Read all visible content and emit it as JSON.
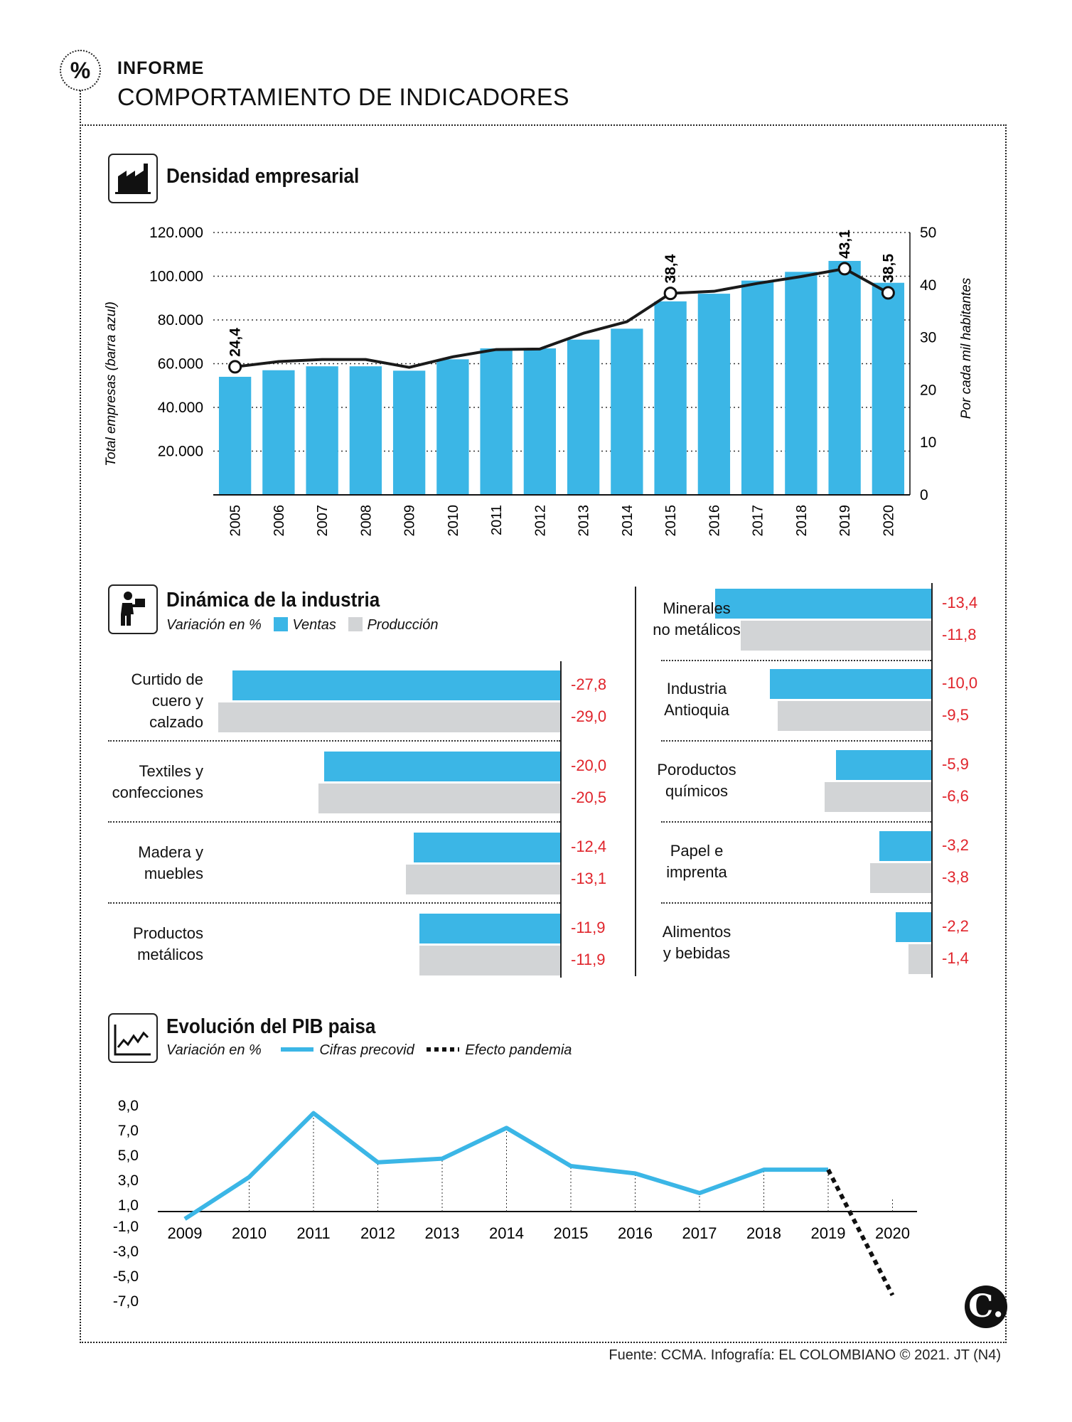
{
  "header": {
    "kicker": "INFORME",
    "title": "COMPORTAMIENTO DE INDICADORES",
    "badge": "%"
  },
  "colors": {
    "blue": "#3bb6e6",
    "gray": "#d2d4d6",
    "line": "#1a1a1a",
    "red": "#e0242b"
  },
  "density": {
    "title": "Densidad empresarial",
    "icon": "factory-icon",
    "chart_data": {
      "type": "bar",
      "title": "Densidad empresarial",
      "ylabel": "Total empresas (barra azul)",
      "y2label": "Por cada mil habitantes",
      "categories": [
        "2005",
        "2006",
        "2007",
        "2008",
        "2009",
        "2010",
        "2011",
        "2012",
        "2013",
        "2014",
        "2015",
        "2016",
        "2017",
        "2018",
        "2019",
        "2020"
      ],
      "series": [
        {
          "values": [
            54000,
            57000,
            58800,
            58800,
            56800,
            62000,
            67000,
            67000,
            71000,
            76000,
            88500,
            92000,
            98000,
            102000,
            107000,
            97000
          ]
        },
        {
          "values": [
            24.4,
            25.4,
            25.8,
            25.8,
            24.3,
            26.3,
            27.7,
            27.8,
            30.8,
            33.0,
            38.4,
            38.8,
            40.3,
            41.6,
            43.1,
            38.5
          ]
        }
      ],
      "ylim": [
        0,
        120000
      ],
      "y2lim": [
        0,
        50
      ],
      "yticks": [
        "20.000",
        "40.000",
        "60.000",
        "80.000",
        "100.000",
        "120.000"
      ],
      "y2ticks": [
        "0",
        "10",
        "20",
        "30",
        "40",
        "50"
      ],
      "labeled": [
        {
          "year": "2005",
          "label": "24,4"
        },
        {
          "year": "2015",
          "label": "38,4"
        },
        {
          "year": "2019",
          "label": "43,1"
        },
        {
          "year": "2020",
          "label": "38,5"
        }
      ]
    }
  },
  "industry": {
    "title": "Dinámica de la industria",
    "icon": "worker-icon",
    "subtitle": "Variación en %",
    "legend": [
      "Ventas",
      "Producción"
    ],
    "chart_data": {
      "type": "bar",
      "orientation": "horizontal",
      "series_names": [
        "Ventas",
        "Producción"
      ],
      "left": [
        {
          "name": [
            "Curtido de",
            "cuero y",
            "calzado"
          ],
          "ventas": -27.8,
          "produccion": -29.0,
          "vl": "-27,8",
          "pl": "-29,0"
        },
        {
          "name": [
            "Textiles y",
            "confecciones"
          ],
          "ventas": -20.0,
          "produccion": -20.5,
          "vl": "-20,0",
          "pl": "-20,5"
        },
        {
          "name": [
            "Madera y",
            "muebles"
          ],
          "ventas": -12.4,
          "produccion": -13.1,
          "vl": "-12,4",
          "pl": "-13,1"
        },
        {
          "name": [
            "Productos",
            "metálicos"
          ],
          "ventas": -11.9,
          "produccion": -11.9,
          "vl": "-11,9",
          "pl": "-11,9"
        }
      ],
      "right": [
        {
          "name": [
            "Minerales",
            "no metálicos"
          ],
          "ventas": -13.4,
          "produccion": -11.8,
          "vl": "-13,4",
          "pl": "-11,8"
        },
        {
          "name": [
            "Industria",
            "Antioquia"
          ],
          "ventas": -10.0,
          "produccion": -9.5,
          "vl": "-10,0",
          "pl": "-9,5"
        },
        {
          "name": [
            "Poroductos",
            "químicos"
          ],
          "ventas": -5.9,
          "produccion": -6.6,
          "vl": "-5,9",
          "pl": "-6,6"
        },
        {
          "name": [
            "Papel e",
            "imprenta"
          ],
          "ventas": -3.2,
          "produccion": -3.8,
          "vl": "-3,2",
          "pl": "-3,8"
        },
        {
          "name": [
            "Alimentos",
            "y bebidas"
          ],
          "ventas": -2.2,
          "produccion": -1.4,
          "vl": "-2,2",
          "pl": "-1,4"
        }
      ]
    }
  },
  "pib": {
    "title": "Evolución del PIB paisa",
    "icon": "trend-chart-icon",
    "subtitle": "Variación en %",
    "legend": [
      "Cifras precovid",
      "Efecto  pandemia"
    ],
    "chart_data": {
      "type": "line",
      "title": "Evolución del PIB paisa",
      "x": [
        "2009",
        "2010",
        "2011",
        "2012",
        "2013",
        "2014",
        "2015",
        "2016",
        "2017",
        "2018",
        "2019",
        "2020"
      ],
      "series": [
        {
          "name": "Cifras precovid",
          "values": [
            -0.6,
            2.8,
            8.0,
            4.0,
            4.3,
            6.8,
            3.7,
            3.1,
            1.5,
            3.4,
            3.4,
            null
          ]
        },
        {
          "name": "Efecto  pandemia",
          "values": [
            null,
            null,
            null,
            null,
            null,
            null,
            null,
            null,
            null,
            null,
            3.4,
            -6.8
          ]
        }
      ],
      "yticks": [
        "9,0",
        "7,0",
        "5,0",
        "3,0",
        "1,0",
        "-1,0",
        "-3,0",
        "-5,0",
        "-7,0"
      ],
      "ylim": [
        -7,
        9
      ]
    }
  },
  "footer": "Fuente: CCMA. Infografía: EL COLOMBIANO © 2021. JT (N4)",
  "logo": "C."
}
